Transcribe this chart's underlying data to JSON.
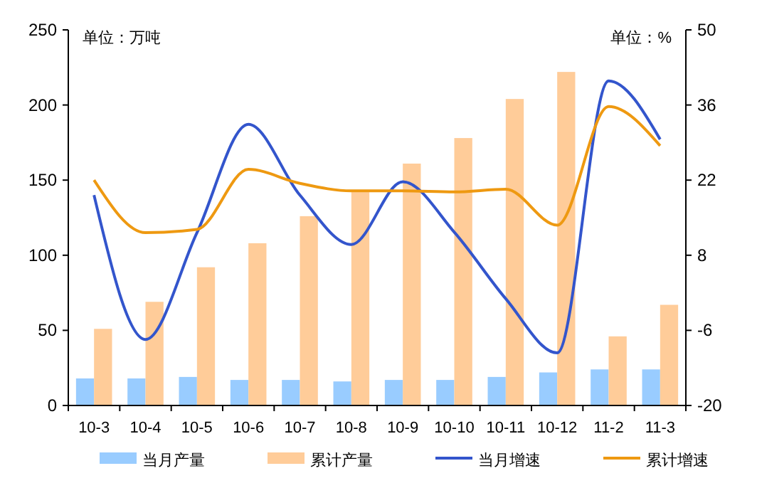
{
  "chart_data": {
    "type": "bar",
    "ylabel": "单位：万吨",
    "y2label": "单位：%",
    "categories": [
      "10-3",
      "10-4",
      "10-5",
      "10-6",
      "10-7",
      "10-8",
      "10-9",
      "10-10",
      "10-11",
      "10-12",
      "11-2",
      "11-3"
    ],
    "series": [
      {
        "name": "当月产量",
        "color": "#99ccff",
        "values": [
          18,
          18,
          19,
          17,
          17,
          16,
          17,
          17,
          19,
          22,
          24,
          24
        ]
      },
      {
        "name": "累计产量",
        "color": "#ffcc99",
        "values": [
          51,
          69,
          92,
          108,
          126,
          142,
          161,
          178,
          204,
          222,
          46,
          67
        ]
      },
      {
        "name": "当月增速",
        "type": "line",
        "axis": "y2",
        "color": "#3355cc",
        "values": [
          19.2,
          -7.7,
          12.2,
          32.4,
          19.2,
          10,
          21.7,
          12.3,
          -0.1,
          -10.2,
          40.5,
          29.6
        ]
      },
      {
        "name": "累计增速",
        "type": "line",
        "axis": "y2",
        "color": "#ee9911",
        "values": [
          22,
          12.2,
          12.8,
          24,
          21.4,
          20,
          20,
          19.8,
          20.3,
          13.6,
          35.7,
          28.4
        ]
      }
    ],
    "ylim": [
      0,
      250
    ],
    "yticks": [
      0,
      50,
      100,
      150,
      200,
      250
    ],
    "y2lim": [
      -20,
      50
    ],
    "y2ticks": [
      -20,
      -6,
      8,
      22,
      36,
      50
    ],
    "grid": false,
    "legend": "bottom",
    "marker": "none",
    "line_style": "solid"
  }
}
